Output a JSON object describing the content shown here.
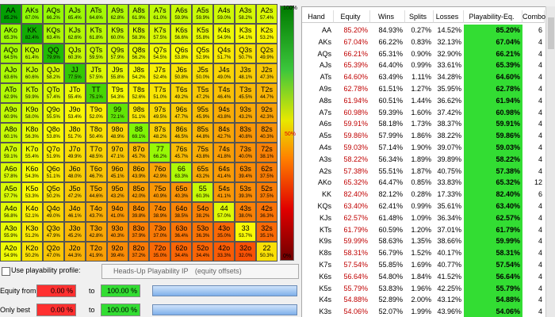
{
  "grid": {
    "rows": [
      [
        {
          "h": "AA",
          "e": "85.2%"
        },
        {
          "h": "AKs",
          "e": "67.0%"
        },
        {
          "h": "AQs",
          "e": "66.2%"
        },
        {
          "h": "AJs",
          "e": "65.4%"
        },
        {
          "h": "ATs",
          "e": "64.6%"
        },
        {
          "h": "A9s",
          "e": "62.8%"
        },
        {
          "h": "A8s",
          "e": "61.9%"
        },
        {
          "h": "A7s",
          "e": "61.0%"
        },
        {
          "h": "A6s",
          "e": "59.9%"
        },
        {
          "h": "A5s",
          "e": "59.9%"
        },
        {
          "h": "A4s",
          "e": "59.0%"
        },
        {
          "h": "A3s",
          "e": "58.2%"
        },
        {
          "h": "A2s",
          "e": "57.4%"
        }
      ],
      [
        {
          "h": "AKo",
          "e": "65.3%"
        },
        {
          "h": "KK",
          "e": "82.4%"
        },
        {
          "h": "KQs",
          "e": "63.4%"
        },
        {
          "h": "KJs",
          "e": "62.6%"
        },
        {
          "h": "KTs",
          "e": "61.8%"
        },
        {
          "h": "K9s",
          "e": "60.0%"
        },
        {
          "h": "K8s",
          "e": "58.3%"
        },
        {
          "h": "K7s",
          "e": "57.5%"
        },
        {
          "h": "K6s",
          "e": "56.6%"
        },
        {
          "h": "K5s",
          "e": "55.8%"
        },
        {
          "h": "K4s",
          "e": "54.9%"
        },
        {
          "h": "K3s",
          "e": "54.1%"
        },
        {
          "h": "K2s",
          "e": "53.2%"
        }
      ],
      [
        {
          "h": "AQo",
          "e": "64.5%"
        },
        {
          "h": "KQo",
          "e": "61.4%"
        },
        {
          "h": "QQ",
          "e": "79.9%"
        },
        {
          "h": "QJs",
          "e": "60.3%"
        },
        {
          "h": "QTs",
          "e": "59.5%"
        },
        {
          "h": "Q9s",
          "e": "57.9%"
        },
        {
          "h": "Q8s",
          "e": "56.2%"
        },
        {
          "h": "Q7s",
          "e": "54.5%"
        },
        {
          "h": "Q6s",
          "e": "53.8%"
        },
        {
          "h": "Q5s",
          "e": "52.9%"
        },
        {
          "h": "Q4s",
          "e": "51.7%"
        },
        {
          "h": "Q3s",
          "e": "50.7%"
        },
        {
          "h": "Q2s",
          "e": "49.9%"
        }
      ],
      [
        {
          "h": "AJo",
          "e": "63.6%"
        },
        {
          "h": "KJo",
          "e": "60.6%"
        },
        {
          "h": "QJo",
          "e": "58.2%"
        },
        {
          "h": "JJ",
          "e": "77.5%"
        },
        {
          "h": "JTs",
          "e": "57.5%"
        },
        {
          "h": "J9s",
          "e": "55.8%"
        },
        {
          "h": "J8s",
          "e": "54.2%"
        },
        {
          "h": "J7s",
          "e": "52.4%"
        },
        {
          "h": "J6s",
          "e": "50.8%"
        },
        {
          "h": "J5s",
          "e": "50.0%"
        },
        {
          "h": "J4s",
          "e": "49.0%"
        },
        {
          "h": "J3s",
          "e": "48.1%"
        },
        {
          "h": "J2s",
          "e": "47.3%"
        }
      ],
      [
        {
          "h": "ATo",
          "e": "62.9%"
        },
        {
          "h": "KTo",
          "e": "59.9%"
        },
        {
          "h": "QTo",
          "e": "57.4%"
        },
        {
          "h": "JTo",
          "e": "55.4%"
        },
        {
          "h": "TT",
          "e": "75.1%"
        },
        {
          "h": "T9s",
          "e": "54.3%"
        },
        {
          "h": "T8s",
          "e": "52.6%"
        },
        {
          "h": "T7s",
          "e": "51.0%"
        },
        {
          "h": "T6s",
          "e": "49.2%"
        },
        {
          "h": "T5s",
          "e": "47.2%"
        },
        {
          "h": "T4s",
          "e": "46.4%"
        },
        {
          "h": "T3s",
          "e": "45.5%"
        },
        {
          "h": "T2s",
          "e": "44.7%"
        }
      ],
      [
        {
          "h": "A9o",
          "e": "60.9%"
        },
        {
          "h": "K9o",
          "e": "58.0%"
        },
        {
          "h": "Q9o",
          "e": "55.5%"
        },
        {
          "h": "J9o",
          "e": "53.4%"
        },
        {
          "h": "T9o",
          "e": "52.0%"
        },
        {
          "h": "99",
          "e": "72.1%"
        },
        {
          "h": "98s",
          "e": "51.1%"
        },
        {
          "h": "97s",
          "e": "49.5%"
        },
        {
          "h": "96s",
          "e": "47.7%"
        },
        {
          "h": "95s",
          "e": "45.9%"
        },
        {
          "h": "94s",
          "e": "43.8%"
        },
        {
          "h": "93s",
          "e": "43.2%"
        },
        {
          "h": "92s",
          "e": "42.3%"
        }
      ],
      [
        {
          "h": "A8o",
          "e": "60.1%"
        },
        {
          "h": "K8o",
          "e": "56.3%"
        },
        {
          "h": "Q8o",
          "e": "53.8%"
        },
        {
          "h": "J8o",
          "e": "51.7%"
        },
        {
          "h": "T8o",
          "e": "50.4%"
        },
        {
          "h": "98o",
          "e": "48.9%"
        },
        {
          "h": "88",
          "e": "69.1%"
        },
        {
          "h": "87s",
          "e": "48.2%"
        },
        {
          "h": "86s",
          "e": "46.5%"
        },
        {
          "h": "85s",
          "e": "44.8%"
        },
        {
          "h": "84s",
          "e": "42.7%"
        },
        {
          "h": "83s",
          "e": "40.8%"
        },
        {
          "h": "82s",
          "e": "40.3%"
        }
      ],
      [
        {
          "h": "A7o",
          "e": "59.1%"
        },
        {
          "h": "K7o",
          "e": "55.4%"
        },
        {
          "h": "Q7o",
          "e": "51.9%"
        },
        {
          "h": "J7o",
          "e": "49.9%"
        },
        {
          "h": "T7o",
          "e": "48.5%"
        },
        {
          "h": "97o",
          "e": "47.1%"
        },
        {
          "h": "87o",
          "e": "45.7%"
        },
        {
          "h": "77",
          "e": "66.2%"
        },
        {
          "h": "76s",
          "e": "45.7%"
        },
        {
          "h": "75s",
          "e": "43.8%"
        },
        {
          "h": "74s",
          "e": "41.8%"
        },
        {
          "h": "73s",
          "e": "40.0%"
        },
        {
          "h": "72s",
          "e": "38.1%"
        }
      ],
      [
        {
          "h": "A6o",
          "e": "57.8%"
        },
        {
          "h": "K6o",
          "e": "54.3%"
        },
        {
          "h": "Q6o",
          "e": "51.1%"
        },
        {
          "h": "J6o",
          "e": "48.0%"
        },
        {
          "h": "T6o",
          "e": "46.7%"
        },
        {
          "h": "96o",
          "e": "45.1%"
        },
        {
          "h": "86o",
          "e": "43.9%"
        },
        {
          "h": "76o",
          "e": "42.9%"
        },
        {
          "h": "66",
          "e": "63.3%"
        },
        {
          "h": "65s",
          "e": "43.2%"
        },
        {
          "h": "64s",
          "e": "41.4%"
        },
        {
          "h": "63s",
          "e": "39.4%"
        },
        {
          "h": "62s",
          "e": "37.5%"
        }
      ],
      [
        {
          "h": "A5o",
          "e": "57.7%"
        },
        {
          "h": "K5o",
          "e": "53.3%"
        },
        {
          "h": "Q5o",
          "e": "50.2%"
        },
        {
          "h": "J5o",
          "e": "47.2%"
        },
        {
          "h": "T5o",
          "e": "44.6%"
        },
        {
          "h": "95o",
          "e": "43.2%"
        },
        {
          "h": "85o",
          "e": "42.0%"
        },
        {
          "h": "75o",
          "e": "40.9%"
        },
        {
          "h": "65o",
          "e": "40.3%"
        },
        {
          "h": "55",
          "e": "60.3%"
        },
        {
          "h": "54s",
          "e": "41.1%"
        },
        {
          "h": "53s",
          "e": "39.3%"
        },
        {
          "h": "52s",
          "e": "37.5%"
        }
      ],
      [
        {
          "h": "A4o",
          "e": "56.8%"
        },
        {
          "h": "K4o",
          "e": "52.1%"
        },
        {
          "h": "Q4o",
          "e": "49.0%"
        },
        {
          "h": "J4o",
          "e": "46.1%"
        },
        {
          "h": "T4o",
          "e": "43.7%"
        },
        {
          "h": "94o",
          "e": "41.0%"
        },
        {
          "h": "84o",
          "e": "39.8%"
        },
        {
          "h": "74o",
          "e": "38.9%"
        },
        {
          "h": "64o",
          "e": "38.5%"
        },
        {
          "h": "54o",
          "e": "38.2%"
        },
        {
          "h": "44",
          "e": "57.0%"
        },
        {
          "h": "43s",
          "e": "38.0%"
        },
        {
          "h": "42s",
          "e": "36.3%"
        }
      ],
      [
        {
          "h": "A3o",
          "e": "55.9%"
        },
        {
          "h": "K3o",
          "e": "51.2%"
        },
        {
          "h": "Q3o",
          "e": "47.9%"
        },
        {
          "h": "J3o",
          "e": "45.2%"
        },
        {
          "h": "T3o",
          "e": "42.8%"
        },
        {
          "h": "93o",
          "e": "40.3%"
        },
        {
          "h": "83o",
          "e": "37.9%"
        },
        {
          "h": "73o",
          "e": "37.0%"
        },
        {
          "h": "63o",
          "e": "36.4%"
        },
        {
          "h": "53o",
          "e": "36.3%"
        },
        {
          "h": "43o",
          "e": "35.0%"
        },
        {
          "h": "33",
          "e": "53.7%"
        },
        {
          "h": "32s",
          "e": "35.1%"
        }
      ],
      [
        {
          "h": "A2o",
          "e": "54.9%"
        },
        {
          "h": "K2o",
          "e": "50.2%"
        },
        {
          "h": "Q2o",
          "e": "47.0%"
        },
        {
          "h": "J2o",
          "e": "44.3%"
        },
        {
          "h": "T2o",
          "e": "41.9%"
        },
        {
          "h": "92o",
          "e": "39.4%"
        },
        {
          "h": "82o",
          "e": "37.2%"
        },
        {
          "h": "72o",
          "e": "35.0%"
        },
        {
          "h": "62o",
          "e": "34.4%"
        },
        {
          "h": "52o",
          "e": "34.4%"
        },
        {
          "h": "42o",
          "e": "33.3%"
        },
        {
          "h": "32o",
          "e": "32.0%"
        },
        {
          "h": "22",
          "e": "50.3%"
        }
      ]
    ],
    "scale": {
      "top": "100%",
      "middle": "50%",
      "bottom": "0%"
    }
  },
  "table": {
    "columns": [
      "Hand",
      "Equity",
      "Wins",
      "Splits",
      "Losses",
      "Playability-Eq.",
      "Combos"
    ],
    "rows": [
      [
        "AA",
        "85.20%",
        "84.93%",
        "0.27%",
        "14.52%",
        "85.20%",
        6
      ],
      [
        "AKs",
        "67.04%",
        "66.22%",
        "0.83%",
        "32.13%",
        "67.04%",
        4
      ],
      [
        "AQs",
        "66.21%",
        "65.31%",
        "0.90%",
        "32.90%",
        "66.21%",
        4
      ],
      [
        "AJs",
        "65.39%",
        "64.40%",
        "0.99%",
        "33.61%",
        "65.39%",
        4
      ],
      [
        "ATs",
        "64.60%",
        "63.49%",
        "1.11%",
        "34.28%",
        "64.60%",
        4
      ],
      [
        "A9s",
        "62.78%",
        "61.51%",
        "1.27%",
        "35.95%",
        "62.78%",
        4
      ],
      [
        "A8s",
        "61.94%",
        "60.51%",
        "1.44%",
        "36.62%",
        "61.94%",
        4
      ],
      [
        "A7s",
        "60.98%",
        "59.39%",
        "1.60%",
        "37.42%",
        "60.98%",
        4
      ],
      [
        "A6s",
        "59.91%",
        "58.18%",
        "1.73%",
        "38.37%",
        "59.91%",
        4
      ],
      [
        "A5s",
        "59.86%",
        "57.99%",
        "1.86%",
        "38.22%",
        "59.86%",
        4
      ],
      [
        "A4s",
        "59.03%",
        "57.14%",
        "1.90%",
        "39.07%",
        "59.03%",
        4
      ],
      [
        "A3s",
        "58.22%",
        "56.34%",
        "1.89%",
        "39.89%",
        "58.22%",
        4
      ],
      [
        "A2s",
        "57.38%",
        "55.51%",
        "1.87%",
        "40.75%",
        "57.38%",
        4
      ],
      [
        "AKo",
        "65.32%",
        "64.47%",
        "0.85%",
        "33.83%",
        "65.32%",
        12
      ],
      [
        "KK",
        "82.40%",
        "82.12%",
        "0.28%",
        "17.33%",
        "82.40%",
        6
      ],
      [
        "KQs",
        "63.40%",
        "62.41%",
        "0.99%",
        "35.61%",
        "63.40%",
        4
      ],
      [
        "KJs",
        "62.57%",
        "61.48%",
        "1.09%",
        "36.34%",
        "62.57%",
        4
      ],
      [
        "KTs",
        "61.79%",
        "60.59%",
        "1.20%",
        "37.01%",
        "61.79%",
        4
      ],
      [
        "K9s",
        "59.99%",
        "58.63%",
        "1.35%",
        "38.66%",
        "59.99%",
        4
      ],
      [
        "K8s",
        "58.31%",
        "56.79%",
        "1.52%",
        "40.17%",
        "58.31%",
        4
      ],
      [
        "K7s",
        "57.54%",
        "55.85%",
        "1.69%",
        "40.77%",
        "57.54%",
        4
      ],
      [
        "K6s",
        "56.64%",
        "54.80%",
        "1.84%",
        "41.52%",
        "56.64%",
        4
      ],
      [
        "K5s",
        "55.79%",
        "53.83%",
        "1.96%",
        "42.25%",
        "55.79%",
        4
      ],
      [
        "K4s",
        "54.88%",
        "52.89%",
        "2.00%",
        "43.12%",
        "54.88%",
        4
      ],
      [
        "K3s",
        "54.06%",
        "52.07%",
        "1.99%",
        "43.96%",
        "54.06%",
        4
      ]
    ]
  },
  "controls": {
    "playability_label": "Use playability profile:",
    "profile": "Heads-Up Playability IP",
    "profile_note": "(equity offsets)",
    "equity_from": {
      "label": "Equity from",
      "min": "0.00 %",
      "to": "to",
      "max": "100.00 %"
    },
    "only_best": {
      "label": "Only best",
      "min": "0.00 %",
      "to": "to",
      "max": "100.00 %"
    }
  }
}
